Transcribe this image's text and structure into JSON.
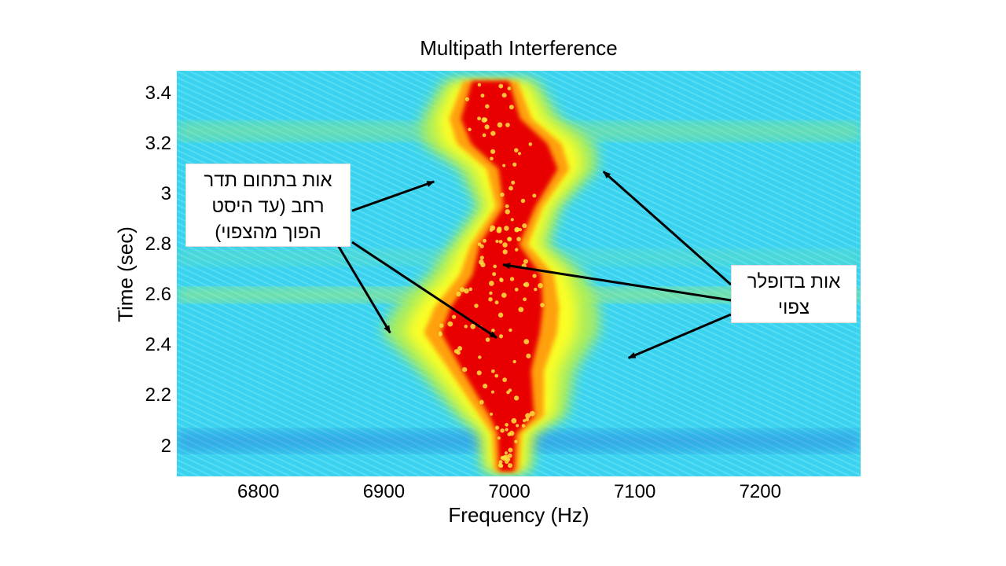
{
  "chart_data": {
    "type": "heatmap",
    "title": "Multipath Interference",
    "xlabel": "Frequency (Hz)",
    "ylabel": "Time (sec)",
    "xlim": [
      6735,
      7280
    ],
    "ylim": [
      1.88,
      3.49
    ],
    "xticks": [
      6800,
      6900,
      7000,
      7100,
      7200
    ],
    "yticks": [
      2,
      2.2,
      2.4,
      2.6,
      2.8,
      3,
      3.2,
      3.4
    ],
    "grid": false,
    "colormap": "jet",
    "ridge": [
      {
        "t": 1.9,
        "f": 6998,
        "w": 11
      },
      {
        "t": 2.05,
        "f": 6998,
        "w": 14
      },
      {
        "t": 2.12,
        "f": 7002,
        "w": 34
      },
      {
        "t": 2.3,
        "f": 6990,
        "w": 52
      },
      {
        "t": 2.45,
        "f": 6985,
        "w": 75
      },
      {
        "t": 2.55,
        "f": 6990,
        "w": 70
      },
      {
        "t": 2.68,
        "f": 6998,
        "w": 52
      },
      {
        "t": 2.8,
        "f": 6992,
        "w": 30
      },
      {
        "t": 2.95,
        "f": 7008,
        "w": 24
      },
      {
        "t": 3.1,
        "f": 7015,
        "w": 45
      },
      {
        "t": 3.2,
        "f": 7000,
        "w": 58
      },
      {
        "t": 3.3,
        "f": 6985,
        "w": 45
      },
      {
        "t": 3.45,
        "f": 6985,
        "w": 28
      }
    ],
    "annotations": [
      {
        "lines": [
          "אות בתחום תדר",
          "רחב (עד היסט",
          "הפוך מהצפוי)"
        ],
        "arrows_to": [
          [
            6940,
            3.05
          ],
          [
            6990,
            2.43
          ],
          [
            6905,
            2.45
          ]
        ]
      },
      {
        "lines": [
          "אות בדופלר",
          "צפוי"
        ],
        "arrows_to": [
          [
            7075,
            3.09
          ],
          [
            6995,
            2.72
          ],
          [
            7095,
            2.35
          ]
        ]
      }
    ],
    "colors": {
      "background": "#3ad2ee",
      "red": "#e80000",
      "arrow": "#000000"
    }
  }
}
